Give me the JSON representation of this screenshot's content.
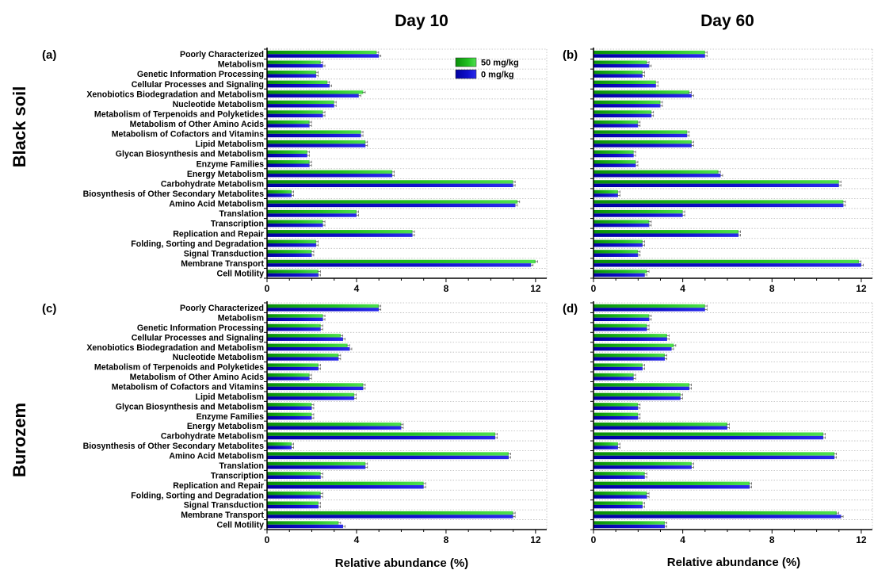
{
  "figure": {
    "column_titles": [
      "Day 10",
      "Day 60"
    ],
    "row_titles": [
      "Black soil",
      "Burozem"
    ],
    "xlabel": "Relative abundance (%)"
  },
  "chart_data": [
    {
      "type": "bar",
      "orientation": "horizontal",
      "panel_label": "(a)",
      "soil": "Black soil",
      "day": "Day 10",
      "xlim": [
        0,
        12.5
      ],
      "xticks": [
        0,
        4,
        8,
        12
      ],
      "grid": "dotted horizontal",
      "legend_position": "top-right",
      "categories": [
        "Poorly Characterized",
        "Metabolism",
        "Genetic Information Processing",
        "Cellular Processes and Signaling",
        "Xenobiotics Biodegradation and Metabolism",
        "Nucleotide Metabolism",
        "Metabolism of Terpenoids and Polyketides",
        "Metabolism of Other Amino Acids",
        "Metabolism of Cofactors and Vitamins",
        "Lipid Metabolism",
        "Glycan Biosynthesis and Metabolism",
        "Enzyme Families",
        "Energy Metabolism",
        "Carbohydrate Metabolism",
        "Biosynthesis of Other Secondary Metabolites",
        "Amino Acid Metabolism",
        "Translation",
        "Transcription",
        "Replication and Repair",
        "Folding, Sorting and Degradation",
        "Signal Transduction",
        "Membrane Transport",
        "Cell Motility"
      ],
      "series": [
        {
          "name": "50 mg/kg",
          "color": "#1fb51f",
          "values": [
            4.9,
            2.4,
            2.2,
            2.7,
            4.3,
            3.0,
            2.5,
            1.9,
            4.2,
            4.4,
            1.8,
            1.9,
            5.6,
            11.0,
            1.1,
            11.2,
            4.0,
            2.5,
            6.5,
            2.2,
            2.0,
            12.0,
            2.3
          ]
        },
        {
          "name": "0 mg/kg",
          "color": "#1414c8",
          "values": [
            5.0,
            2.5,
            2.2,
            2.8,
            4.1,
            3.0,
            2.5,
            1.9,
            4.2,
            4.4,
            1.8,
            1.9,
            5.6,
            11.0,
            1.1,
            11.1,
            4.0,
            2.5,
            6.5,
            2.2,
            2.0,
            11.8,
            2.3
          ]
        }
      ]
    },
    {
      "type": "bar",
      "orientation": "horizontal",
      "panel_label": "(b)",
      "soil": "Black soil",
      "day": "Day 60",
      "xlim": [
        0,
        12.5
      ],
      "xticks": [
        0,
        4,
        8,
        12
      ],
      "grid": "dotted horizontal",
      "categories": [
        "Poorly Characterized",
        "Metabolism",
        "Genetic Information Processing",
        "Cellular Processes and Signaling",
        "Xenobiotics Biodegradation and Metabolism",
        "Nucleotide Metabolism",
        "Metabolism of Terpenoids and Polyketides",
        "Metabolism of Other Amino Acids",
        "Metabolism of Cofactors and Vitamins",
        "Lipid Metabolism",
        "Glycan Biosynthesis and Metabolism",
        "Enzyme Families",
        "Energy Metabolism",
        "Carbohydrate Metabolism",
        "Biosynthesis of Other Secondary Metabolites",
        "Amino Acid Metabolism",
        "Translation",
        "Transcription",
        "Replication and Repair",
        "Folding, Sorting and Degradation",
        "Signal Transduction",
        "Membrane Transport",
        "Cell Motility"
      ],
      "series": [
        {
          "name": "50 mg/kg",
          "color": "#1fb51f",
          "values": [
            5.0,
            2.4,
            2.2,
            2.8,
            4.3,
            3.0,
            2.6,
            2.0,
            4.2,
            4.4,
            1.8,
            1.9,
            5.6,
            11.0,
            1.1,
            11.2,
            4.0,
            2.5,
            6.5,
            2.2,
            2.0,
            11.9,
            2.4
          ]
        },
        {
          "name": "0 mg/kg",
          "color": "#1414c8",
          "values": [
            5.0,
            2.5,
            2.2,
            2.8,
            4.4,
            3.0,
            2.6,
            2.0,
            4.2,
            4.4,
            1.8,
            1.9,
            5.7,
            11.0,
            1.1,
            11.2,
            4.0,
            2.5,
            6.5,
            2.2,
            2.0,
            12.0,
            2.3
          ]
        }
      ]
    },
    {
      "type": "bar",
      "orientation": "horizontal",
      "panel_label": "(c)",
      "soil": "Burozem",
      "day": "Day 10",
      "xlim": [
        0,
        12.5
      ],
      "xticks": [
        0,
        4,
        8,
        12
      ],
      "grid": "dotted horizontal",
      "categories": [
        "Poorly Characterized",
        "Metabolism",
        "Genetic Information Processing",
        "Cellular Processes and Signaling",
        "Xenobiotics Biodegradation and Metabolism",
        "Nucleotide Metabolism",
        "Metabolism of Terpenoids and Polyketides",
        "Metabolism of Other Amino Acids",
        "Metabolism of Cofactors and Vitamins",
        "Lipid Metabolism",
        "Glycan Biosynthesis and Metabolism",
        "Enzyme Families",
        "Energy Metabolism",
        "Carbohydrate Metabolism",
        "Biosynthesis of Other Secondary Metabolites",
        "Amino Acid Metabolism",
        "Translation",
        "Transcription",
        "Replication and Repair",
        "Folding, Sorting and Degradation",
        "Signal Transduction",
        "Membrane Transport",
        "Cell Motility"
      ],
      "series": [
        {
          "name": "50 mg/kg",
          "color": "#1fb51f",
          "values": [
            5.0,
            2.5,
            2.4,
            3.3,
            3.6,
            3.2,
            2.3,
            1.9,
            4.3,
            3.9,
            2.0,
            2.0,
            6.0,
            10.2,
            1.1,
            10.8,
            4.4,
            2.4,
            7.0,
            2.4,
            2.3,
            11.0,
            3.2
          ]
        },
        {
          "name": "0 mg/kg",
          "color": "#1414c8",
          "values": [
            5.0,
            2.5,
            2.4,
            3.4,
            3.7,
            3.2,
            2.3,
            1.9,
            4.3,
            3.9,
            2.0,
            2.0,
            6.0,
            10.2,
            1.1,
            10.8,
            4.4,
            2.4,
            7.0,
            2.4,
            2.3,
            11.0,
            3.4
          ]
        }
      ]
    },
    {
      "type": "bar",
      "orientation": "horizontal",
      "panel_label": "(d)",
      "soil": "Burozem",
      "day": "Day 60",
      "xlim": [
        0,
        12.5
      ],
      "xticks": [
        0,
        4,
        8,
        12
      ],
      "grid": "dotted horizontal",
      "categories": [
        "Poorly Characterized",
        "Metabolism",
        "Genetic Information Processing",
        "Cellular Processes and Signaling",
        "Xenobiotics Biodegradation and Metabolism",
        "Nucleotide Metabolism",
        "Metabolism of Terpenoids and Polyketides",
        "Metabolism of Other Amino Acids",
        "Metabolism of Cofactors and Vitamins",
        "Lipid Metabolism",
        "Glycan Biosynthesis and Metabolism",
        "Enzyme Families",
        "Energy Metabolism",
        "Carbohydrate Metabolism",
        "Biosynthesis of Other Secondary Metabolites",
        "Amino Acid Metabolism",
        "Translation",
        "Transcription",
        "Replication and Repair",
        "Folding, Sorting and Degradation",
        "Signal Transduction",
        "Membrane Transport",
        "Cell Motility"
      ],
      "series": [
        {
          "name": "50 mg/kg",
          "color": "#1fb51f",
          "values": [
            5.0,
            2.5,
            2.4,
            3.3,
            3.6,
            3.2,
            2.2,
            1.8,
            4.3,
            3.9,
            2.0,
            2.0,
            6.0,
            10.3,
            1.1,
            10.8,
            4.4,
            2.3,
            7.0,
            2.4,
            2.2,
            10.9,
            3.2
          ]
        },
        {
          "name": "0 mg/kg",
          "color": "#1414c8",
          "values": [
            5.0,
            2.5,
            2.4,
            3.3,
            3.5,
            3.2,
            2.2,
            1.8,
            4.3,
            3.9,
            2.0,
            2.0,
            6.0,
            10.3,
            1.1,
            10.8,
            4.4,
            2.3,
            7.0,
            2.4,
            2.2,
            11.1,
            3.2
          ]
        }
      ]
    }
  ]
}
